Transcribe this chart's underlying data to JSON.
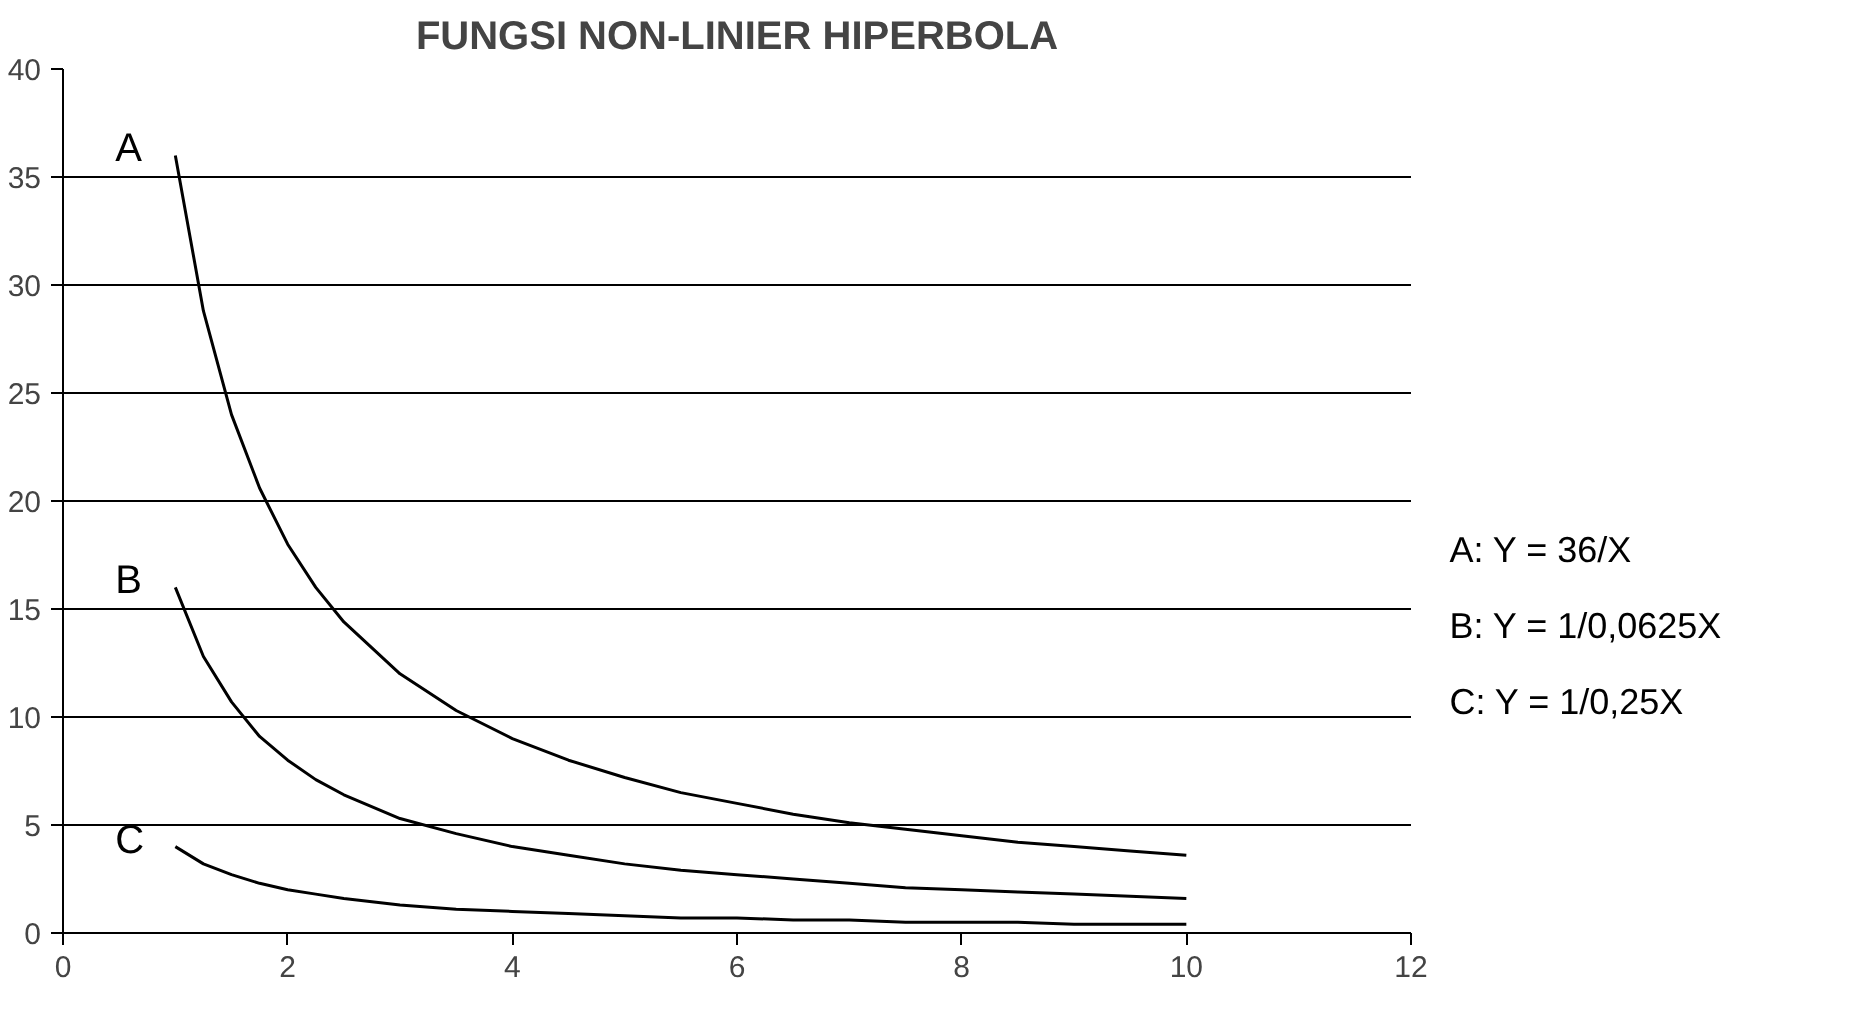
{
  "chart_data": {
    "type": "line",
    "title": "FUNGSI NON-LINIER HIPERBOLA",
    "x": [
      1,
      1.25,
      1.5,
      1.75,
      2,
      2.25,
      2.5,
      3,
      3.5,
      4,
      4.5,
      5,
      5.5,
      6,
      6.5,
      7,
      7.5,
      8,
      8.5,
      9,
      9.5,
      10
    ],
    "series": [
      {
        "name": "A",
        "color": "#000000",
        "values": [
          36,
          28.8,
          24,
          20.6,
          18,
          16,
          14.4,
          12,
          10.3,
          9,
          8,
          7.2,
          6.5,
          6,
          5.5,
          5.1,
          4.8,
          4.5,
          4.2,
          4,
          3.8,
          3.6
        ]
      },
      {
        "name": "B",
        "color": "#000000",
        "values": [
          16,
          12.8,
          10.7,
          9.1,
          8,
          7.1,
          6.4,
          5.3,
          4.6,
          4,
          3.6,
          3.2,
          2.9,
          2.7,
          2.5,
          2.3,
          2.1,
          2,
          1.9,
          1.8,
          1.7,
          1.6
        ]
      },
      {
        "name": "C",
        "color": "#000000",
        "values": [
          4,
          3.2,
          2.7,
          2.3,
          2,
          1.8,
          1.6,
          1.3,
          1.1,
          1,
          0.9,
          0.8,
          0.7,
          0.7,
          0.6,
          0.6,
          0.5,
          0.5,
          0.5,
          0.4,
          0.4,
          0.4
        ]
      }
    ],
    "annotations": [
      "A: Y = 36/X",
      "B: Y = 1/0,0625X",
      "C: Y = 1/0,25X"
    ],
    "xlim": [
      0,
      12
    ],
    "xticks": [
      0,
      2,
      4,
      6,
      8,
      10,
      12
    ],
    "ylim": [
      0,
      40
    ],
    "yticks": [
      0,
      5,
      10,
      15,
      20,
      25,
      30,
      35,
      40
    ],
    "grid": "y",
    "marker": "none",
    "line_style": "solid"
  }
}
